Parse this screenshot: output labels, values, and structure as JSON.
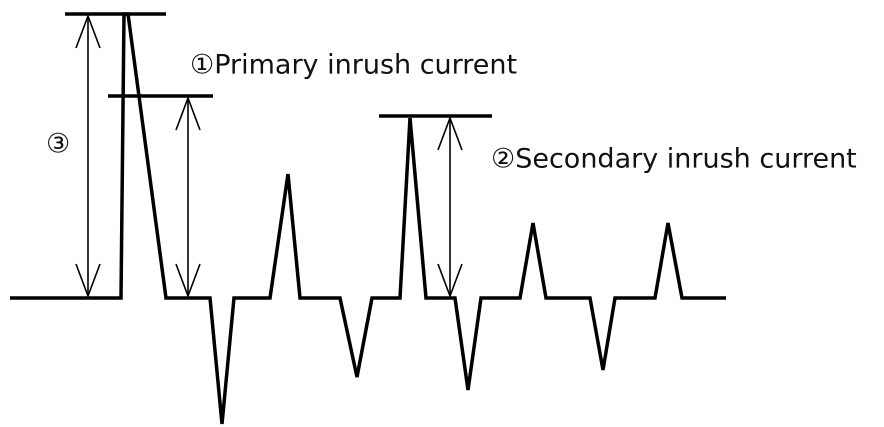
{
  "labels": {
    "primary": "①Primary inrush current",
    "secondary": "②Secondary inrush current",
    "total": "③"
  }
}
